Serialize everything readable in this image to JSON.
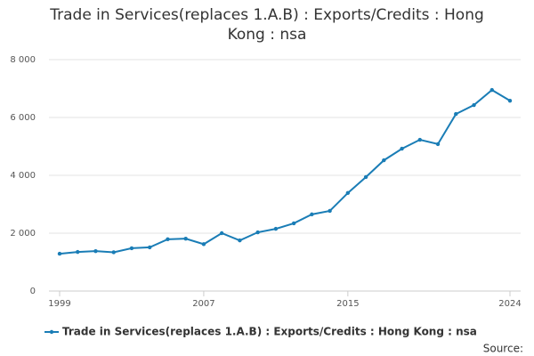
{
  "chart_data": {
    "type": "line",
    "title": "Trade in Services(replaces 1.A.B) : Exports/Credits : Hong Kong : nsa",
    "x": [
      1999,
      2000,
      2001,
      2002,
      2003,
      2004,
      2005,
      2006,
      2007,
      2008,
      2009,
      2010,
      2011,
      2012,
      2013,
      2014,
      2015,
      2016,
      2017,
      2018,
      2019,
      2020,
      2021,
      2022,
      2023,
      2024
    ],
    "series": [
      {
        "name": "Trade in Services(replaces 1.A.B) : Exports/Credits : Hong Kong : nsa",
        "color": "#1a7db6",
        "values": [
          1290,
          1350,
          1380,
          1340,
          1480,
          1510,
          1790,
          1810,
          1620,
          2000,
          1750,
          2030,
          2150,
          2340,
          2650,
          2770,
          3390,
          3940,
          4520,
          4920,
          5230,
          5080,
          6120,
          6430,
          6950,
          6580
        ]
      }
    ],
    "xlim": [
      1999,
      2024
    ],
    "xticks": [
      1999,
      2007,
      2015,
      2024
    ],
    "ylim": [
      0,
      8000
    ],
    "yticks": [
      0,
      {
        "value": 2000,
        "label": "2 000"
      },
      {
        "value": 4000,
        "label": "4 000"
      },
      {
        "value": 6000,
        "label": "6 000"
      },
      {
        "value": 8000,
        "label": "8 000"
      }
    ],
    "grid": true,
    "source": "Source:"
  }
}
